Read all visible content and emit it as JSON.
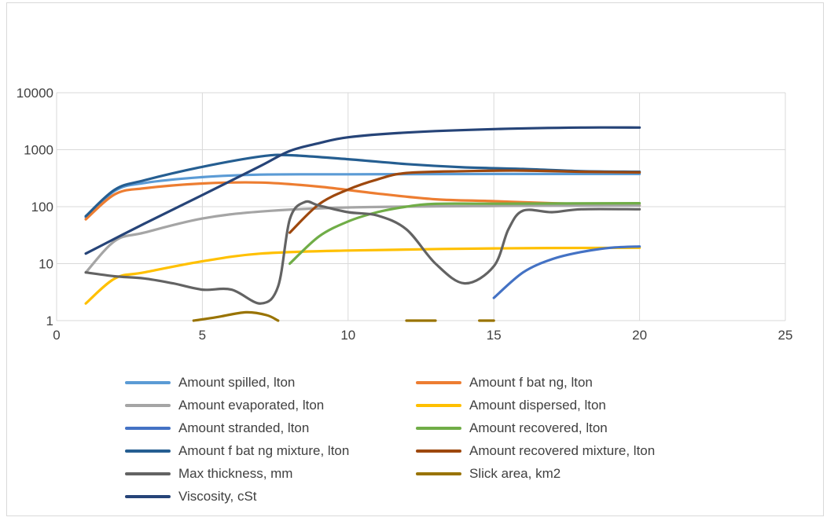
{
  "chart_data": {
    "type": "line",
    "title": "",
    "xlabel": "",
    "ylabel": "",
    "x_scale": "linear",
    "y_scale": "log",
    "xlim": [
      0,
      25
    ],
    "ylim": [
      1,
      10000
    ],
    "x_ticks": [
      "0",
      "5",
      "10",
      "15",
      "20",
      "25"
    ],
    "y_ticks": [
      "1",
      "10",
      "100",
      "1000",
      "10000"
    ],
    "grid": "on",
    "legend_position": "bottom",
    "series": [
      {
        "name": "Amount spilled, lton",
        "color": "#5b9bd5",
        "points": [
          [
            1,
            65
          ],
          [
            2,
            190
          ],
          [
            3,
            260
          ],
          [
            5,
            330
          ],
          [
            7,
            365
          ],
          [
            10,
            370
          ],
          [
            15,
            375
          ],
          [
            20,
            375
          ]
        ]
      },
      {
        "name": "Amount f bat ng, lton",
        "color": "#ed7d31",
        "points": [
          [
            1,
            60
          ],
          [
            2,
            165
          ],
          [
            3,
            210
          ],
          [
            5,
            255
          ],
          [
            7,
            265
          ],
          [
            9,
            225
          ],
          [
            11,
            170
          ],
          [
            13,
            135
          ],
          [
            15,
            125
          ],
          [
            17,
            115
          ],
          [
            20,
            105
          ]
        ]
      },
      {
        "name": "Amount evaporated, lton",
        "color": "#a5a5a5",
        "points": [
          [
            1,
            7
          ],
          [
            2,
            25
          ],
          [
            3,
            35
          ],
          [
            5,
            62
          ],
          [
            7,
            82
          ],
          [
            10,
            97
          ],
          [
            15,
            103
          ],
          [
            20,
            105
          ]
        ]
      },
      {
        "name": "Amount dispersed, lton",
        "color": "#ffc000",
        "points": [
          [
            1,
            2
          ],
          [
            2,
            5.5
          ],
          [
            3,
            7
          ],
          [
            5,
            11
          ],
          [
            7,
            15
          ],
          [
            10,
            17
          ],
          [
            15,
            18.5
          ],
          [
            20,
            19
          ]
        ]
      },
      {
        "name": "Amount stranded, lton",
        "color": "#4472c4",
        "points": [
          [
            15,
            2.5
          ],
          [
            16,
            7
          ],
          [
            17,
            12
          ],
          [
            18,
            16
          ],
          [
            19,
            19
          ],
          [
            20,
            20
          ]
        ]
      },
      {
        "name": "Amount recovered, lton",
        "color": "#70ad47",
        "points": [
          [
            8,
            10
          ],
          [
            9,
            30
          ],
          [
            10,
            55
          ],
          [
            11,
            80
          ],
          [
            12,
            100
          ],
          [
            13,
            112
          ],
          [
            15,
            113
          ],
          [
            20,
            115
          ]
        ]
      },
      {
        "name": "Amount f bat ng mixture, lton",
        "color": "#255e91",
        "points": [
          [
            1,
            68
          ],
          [
            2,
            200
          ],
          [
            3,
            290
          ],
          [
            5,
            500
          ],
          [
            7,
            760
          ],
          [
            8,
            800
          ],
          [
            10,
            680
          ],
          [
            12,
            560
          ],
          [
            14,
            490
          ],
          [
            16,
            460
          ],
          [
            18,
            420
          ],
          [
            20,
            410
          ]
        ]
      },
      {
        "name": "Amount recovered mixture, lton",
        "color": "#9e480e",
        "points": [
          [
            8,
            35
          ],
          [
            9,
            110
          ],
          [
            10,
            200
          ],
          [
            11,
            300
          ],
          [
            12,
            390
          ],
          [
            14,
            420
          ],
          [
            16,
            430
          ],
          [
            18,
            410
          ],
          [
            20,
            400
          ]
        ]
      },
      {
        "name": "Max thickness, mm",
        "color": "#636363",
        "points": [
          [
            1,
            7
          ],
          [
            2,
            6
          ],
          [
            3,
            5.5
          ],
          [
            4,
            4.5
          ],
          [
            5,
            3.5
          ],
          [
            6,
            3.5
          ],
          [
            7,
            2
          ],
          [
            7.6,
            4
          ],
          [
            8,
            60
          ],
          [
            8.5,
            120
          ],
          [
            9,
            105
          ],
          [
            10,
            80
          ],
          [
            11,
            70
          ],
          [
            12,
            40
          ],
          [
            13,
            10
          ],
          [
            14,
            4.5
          ],
          [
            15,
            9
          ],
          [
            15.5,
            40
          ],
          [
            16,
            85
          ],
          [
            17,
            80
          ],
          [
            18,
            90
          ],
          [
            20,
            90
          ]
        ]
      },
      {
        "name": "Slick area, km2",
        "color": "#997300",
        "segments": [
          [
            [
              4.7,
              1
            ],
            [
              5.5,
              1.15
            ],
            [
              6.5,
              1.4
            ],
            [
              7.2,
              1.25
            ],
            [
              7.6,
              1
            ]
          ],
          [
            [
              12,
              1
            ],
            [
              13,
              1
            ]
          ],
          [
            [
              14.5,
              1
            ],
            [
              15,
              1
            ]
          ]
        ]
      },
      {
        "name": "Viscosity, cSt",
        "color": "#264478",
        "points": [
          [
            1,
            15
          ],
          [
            3,
            50
          ],
          [
            5,
            160
          ],
          [
            7,
            520
          ],
          [
            8,
            950
          ],
          [
            9,
            1300
          ],
          [
            10,
            1650
          ],
          [
            12,
            2000
          ],
          [
            15,
            2300
          ],
          [
            18,
            2450
          ],
          [
            20,
            2450
          ]
        ]
      }
    ]
  }
}
